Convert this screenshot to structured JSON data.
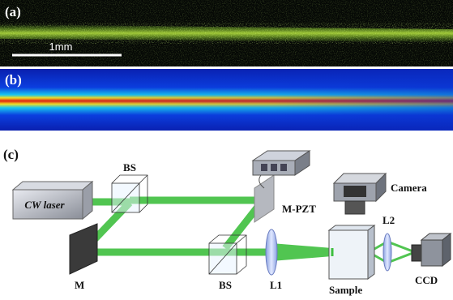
{
  "panels": {
    "a": {
      "label": "(a)",
      "scale_bar": "1mm"
    },
    "b": {
      "label": "(b)"
    },
    "c": {
      "label": "(c)",
      "components": {
        "laser": "CW laser",
        "bs_top": "BS",
        "mpzt": "M-PZT",
        "camera": "Camera",
        "mirror": "M",
        "bs_bottom": "BS",
        "lens1": "L1",
        "sample": "Sample",
        "lens2": "L2",
        "ccd": "CCD"
      }
    }
  }
}
